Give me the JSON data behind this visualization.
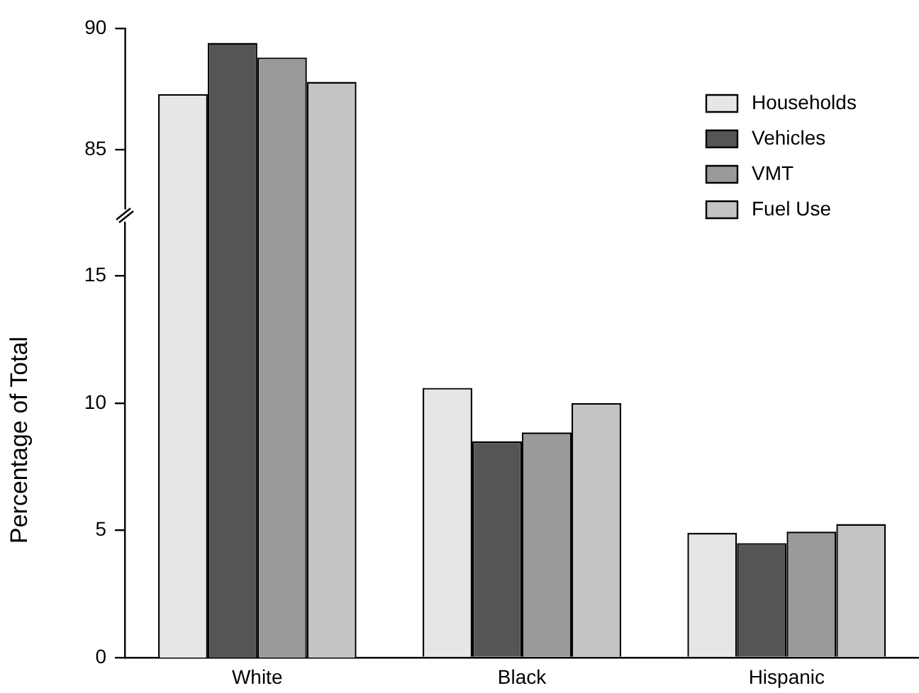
{
  "chart_data": [
    {
      "type": "bar",
      "categories": [
        null
      ],
      "series": [
        {
          "color": "#e6e6e6",
          "values": [
            87.3
          ]
        },
        {
          "color": "#555555",
          "values": [
            89.4
          ]
        },
        {
          "color": "#9a9a9a",
          "values": [
            88.8
          ]
        },
        {
          "color": "#c4c4c4",
          "values": [
            87.8
          ]
        }
      ],
      "ylim": [
        82.6,
        90
      ],
      "yticks": [
        85,
        90
      ],
      "tick_labels": "y",
      "grid": false
    },
    {
      "type": "bar",
      "categories": [
        "White",
        "Black",
        "Hispanic"
      ],
      "ylabel": "Percentage of Total",
      "series": [
        {
          "name": "Households",
          "color": "#e6e6e6",
          "values": [
            null,
            10.6,
            4.9
          ]
        },
        {
          "name": "Vehicles",
          "color": "#555555",
          "values": [
            null,
            8.5,
            4.5
          ]
        },
        {
          "name": "VMT",
          "color": "#9a9a9a",
          "values": [
            null,
            8.85,
            4.95
          ]
        },
        {
          "name": "Fuel Use",
          "color": "#c4c4c4",
          "values": [
            null,
            10.0,
            5.25
          ]
        }
      ],
      "ylim": [
        0,
        17.1
      ],
      "yticks": [
        0,
        5,
        10,
        15
      ],
      "legend": "top right",
      "grid": false
    }
  ]
}
